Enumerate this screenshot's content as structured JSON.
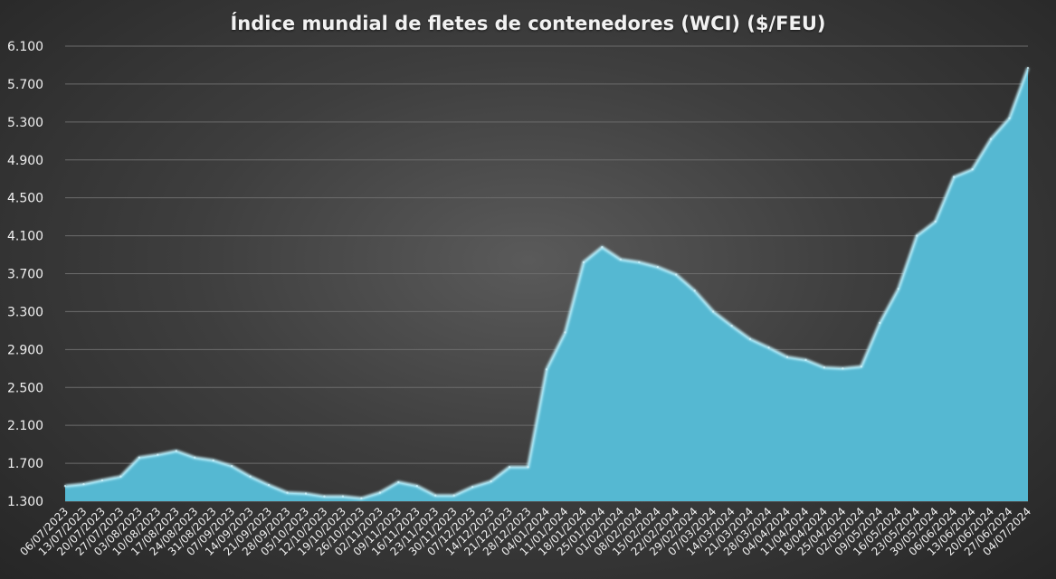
{
  "chart_data": {
    "type": "area",
    "title": "Índice mundial de fletes de contenedores (WCI) ($/FEU)",
    "xlabel": "",
    "ylabel": "",
    "ylim": [
      1300,
      6100
    ],
    "yticks": [
      1300,
      1700,
      2100,
      2500,
      2900,
      3300,
      3700,
      4100,
      4500,
      4900,
      5300,
      5700,
      6100
    ],
    "ytick_labels": [
      "1.300",
      "1.700",
      "2.100",
      "2.500",
      "2.900",
      "3.300",
      "3.700",
      "4.100",
      "4.500",
      "4.900",
      "5.300",
      "5.700",
      "6.100"
    ],
    "grid": true,
    "legend": "none",
    "color": "#55b8d2",
    "x": [
      "06/07/2023",
      "13/07/2023",
      "20/07/2023",
      "27/07/2023",
      "03/08/2023",
      "10/08/2023",
      "17/08/2023",
      "24/08/2023",
      "31/08/2023",
      "07/09/2023",
      "14/09/2023",
      "21/09/2023",
      "28/09/2023",
      "05/10/2023",
      "12/10/2023",
      "19/10/2023",
      "26/10/2023",
      "02/11/2023",
      "09/11/2023",
      "16/11/2023",
      "23/11/2023",
      "30/11/2023",
      "07/12/2023",
      "14/12/2023",
      "21/12/2023",
      "28/12/2023",
      "04/01/2024",
      "11/01/2024",
      "18/01/2024",
      "25/01/2024",
      "01/02/2024",
      "08/02/2024",
      "15/02/2024",
      "22/02/2024",
      "29/02/2024",
      "07/03/2024",
      "14/03/2024",
      "21/03/2024",
      "28/03/2024",
      "04/04/2024",
      "11/04/2024",
      "18/04/2024",
      "25/04/2024",
      "02/05/2024",
      "09/05/2024",
      "16/05/2024",
      "23/05/2024",
      "30/05/2024",
      "06/06/2024",
      "13/06/2024",
      "20/06/2024",
      "27/06/2024",
      "04/07/2024"
    ],
    "values": [
      1460,
      1480,
      1520,
      1560,
      1760,
      1790,
      1830,
      1760,
      1730,
      1670,
      1560,
      1470,
      1390,
      1380,
      1350,
      1350,
      1330,
      1390,
      1500,
      1460,
      1360,
      1360,
      1450,
      1510,
      1660,
      1660,
      2690,
      3080,
      3820,
      3980,
      3850,
      3820,
      3770,
      3690,
      3520,
      3300,
      3150,
      3010,
      2920,
      2820,
      2790,
      2710,
      2700,
      2720,
      3180,
      3540,
      4100,
      4250,
      4720,
      4800,
      5120,
      5340,
      5870
    ]
  }
}
